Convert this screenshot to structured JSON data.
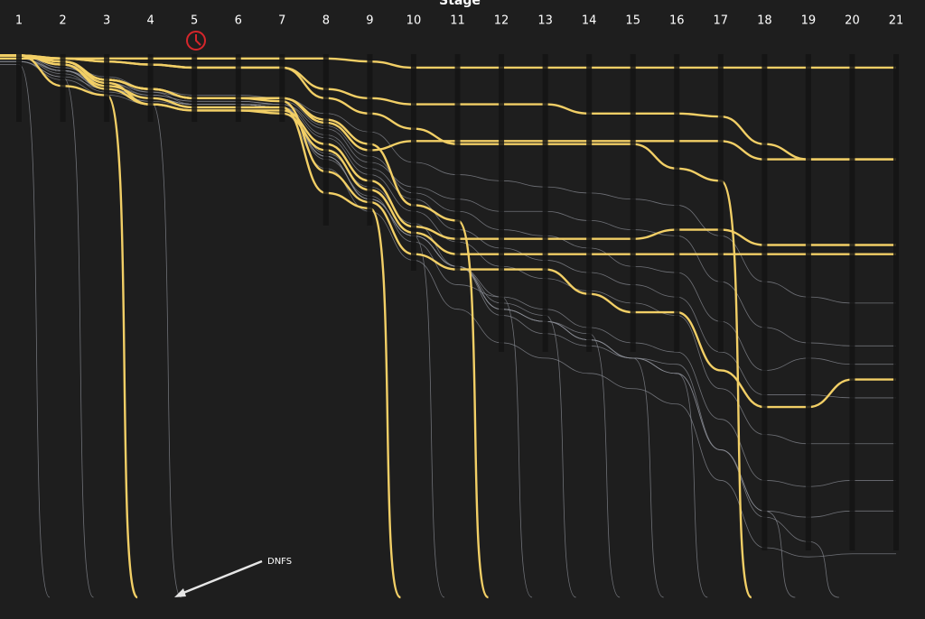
{
  "chart_data": {
    "type": "bump",
    "title": "Stage",
    "categories": [
      "1",
      "2",
      "3",
      "4",
      "5",
      "6",
      "7",
      "8",
      "9",
      "10",
      "11",
      "12",
      "13",
      "14",
      "15",
      "16",
      "17",
      "18",
      "19",
      "20",
      "21"
    ],
    "ylim": [
      0,
      180
    ],
    "annotation": "DNFS",
    "series": [
      {
        "color": "#f2cf66",
        "values": [
          2,
          2,
          2,
          2,
          2,
          2,
          2,
          2,
          3,
          5,
          5,
          5,
          5,
          5,
          5,
          5,
          5,
          5,
          5,
          5,
          5
        ]
      },
      {
        "color": "#f2cf66",
        "values": [
          1,
          3,
          9,
          12,
          15,
          15,
          15,
          23,
          32,
          29,
          29,
          29,
          29,
          29,
          29,
          29,
          29,
          35,
          35,
          35,
          35
        ]
      },
      {
        "color": "#f2cf66",
        "values": [
          1,
          3,
          10,
          17,
          19,
          19,
          19,
          30,
          42,
          57,
          61,
          61,
          61,
          61,
          61,
          58,
          58,
          63,
          63,
          63,
          63
        ]
      },
      {
        "color": "#f2cf66",
        "values": [
          1,
          4,
          12,
          17,
          19,
          19,
          20,
          32,
          45,
          59,
          66,
          66,
          66,
          66,
          66,
          66,
          66,
          66,
          66,
          66,
          66
        ]
      },
      {
        "color": "#f2cf66",
        "values": [
          1,
          2,
          3,
          4,
          5,
          5,
          5,
          12,
          15,
          17,
          17,
          17,
          17,
          20,
          20,
          20,
          21,
          30,
          35,
          35,
          35
        ]
      },
      {
        "color": "#f2cf66",
        "values": [
          1,
          3,
          9,
          12,
          15,
          15,
          16,
          39,
          49,
          66,
          71,
          71,
          71,
          79,
          85,
          85,
          104,
          116,
          116,
          107,
          107
        ]
      },
      {
        "color": "#f2cf66",
        "values": [
          1,
          11,
          14,
          null,
          null,
          null,
          null,
          null,
          null,
          null,
          null,
          null,
          null,
          null,
          null,
          null,
          null,
          null,
          null,
          null,
          null
        ]
      },
      {
        "color": "#f2cf66",
        "values": [
          1,
          4,
          11,
          15,
          18,
          18,
          18,
          46,
          51,
          null,
          null,
          null,
          null,
          null,
          null,
          null,
          null,
          null,
          null,
          null,
          null
        ]
      },
      {
        "color": "#f2cf66",
        "values": [
          1,
          3,
          9,
          12,
          15,
          15,
          15,
          22,
          30,
          50,
          55,
          null,
          null,
          null,
          null,
          null,
          null,
          null,
          null,
          null,
          null
        ]
      },
      {
        "color": "#f2cf66",
        "values": [
          1,
          2,
          3,
          4,
          5,
          5,
          5,
          15,
          20,
          25,
          30,
          30,
          30,
          30,
          30,
          38,
          42,
          null,
          null,
          null,
          null
        ]
      },
      {
        "color": "#8b8e96",
        "values": [
          1,
          6,
          11,
          14,
          16,
          16,
          17,
          25,
          36,
          44,
          48,
          52,
          52,
          55,
          58,
          60,
          75,
          90,
          95,
          96,
          96
        ]
      },
      {
        "color": "#8b8e96",
        "values": [
          2,
          7,
          13,
          16,
          18,
          18,
          18,
          35,
          47,
          62,
          76,
          80,
          84,
          90,
          95,
          98,
          120,
          140,
          142,
          140,
          140
        ]
      },
      {
        "color": "#8b8e96",
        "values": [
          1,
          5,
          10,
          13,
          17,
          17,
          18,
          28,
          40,
          52,
          62,
          70,
          74,
          78,
          82,
          86,
          110,
          125,
          128,
          128,
          128
        ]
      },
      {
        "color": "#8b8e96",
        "values": [
          3,
          8,
          12,
          15,
          17,
          17,
          17,
          33,
          44,
          56,
          70,
          86,
          92,
          96,
          100,
          102,
          130,
          150,
          152,
          150,
          150
        ]
      },
      {
        "color": "#8b8e96",
        "values": [
          2,
          6,
          10,
          14,
          16,
          16,
          17,
          27,
          38,
          48,
          58,
          64,
          68,
          72,
          76,
          80,
          98,
          112,
          112,
          113,
          113
        ]
      },
      {
        "color": "#8b8e96",
        "values": [
          1,
          4,
          8,
          12,
          14,
          14,
          15,
          20,
          26,
          36,
          40,
          42,
          44,
          46,
          48,
          50,
          60,
          75,
          80,
          82,
          82
        ]
      },
      {
        "color": "#8b8e96",
        "values": [
          1,
          5,
          9,
          13,
          15,
          15,
          16,
          24,
          34,
          46,
          52,
          58,
          60,
          64,
          70,
          72,
          88,
          104,
          100,
          102,
          102
        ]
      },
      {
        "color": "#8b8e96",
        "values": [
          3,
          9,
          14,
          17,
          19,
          19,
          20,
          38,
          52,
          68,
          84,
          95,
          100,
          105,
          110,
          115,
          140,
          162,
          165,
          164,
          164
        ]
      },
      {
        "color": "#8b8e96",
        "values": [
          4,
          null,
          null,
          null,
          null,
          null,
          null,
          null,
          null,
          null,
          null,
          null,
          null,
          null,
          null,
          null,
          null,
          null,
          null,
          null,
          null
        ]
      },
      {
        "color": "#8b8e96",
        "values": [
          3,
          8,
          null,
          null,
          null,
          null,
          null,
          null,
          null,
          null,
          null,
          null,
          null,
          null,
          null,
          null,
          null,
          null,
          null,
          null,
          null
        ]
      },
      {
        "color": "#8b8e96",
        "values": [
          2,
          6,
          12,
          16,
          null,
          null,
          null,
          null,
          null,
          null,
          null,
          null,
          null,
          null,
          null,
          null,
          null,
          null,
          null,
          null,
          null
        ]
      },
      {
        "color": "#8b8e96",
        "values": [
          2,
          6,
          12,
          15,
          17,
          17,
          18,
          34,
          48,
          60,
          null,
          null,
          null,
          null,
          null,
          null,
          null,
          null,
          null,
          null,
          null
        ]
      },
      {
        "color": "#8b8e96",
        "values": [
          2,
          6,
          12,
          15,
          17,
          17,
          18,
          34,
          48,
          60,
          70,
          80,
          null,
          null,
          null,
          null,
          null,
          null,
          null,
          null,
          null
        ]
      },
      {
        "color": "#8b8e96",
        "values": [
          2,
          6,
          12,
          15,
          17,
          17,
          18,
          34,
          48,
          60,
          70,
          82,
          86,
          null,
          null,
          null,
          null,
          null,
          null,
          null,
          null
        ]
      },
      {
        "color": "#8b8e96",
        "values": [
          2,
          6,
          12,
          15,
          17,
          17,
          18,
          34,
          48,
          60,
          70,
          84,
          88,
          92,
          null,
          null,
          null,
          null,
          null,
          null,
          null
        ]
      },
      {
        "color": "#8b8e96",
        "values": [
          2,
          6,
          12,
          15,
          17,
          17,
          18,
          34,
          48,
          60,
          70,
          84,
          88,
          94,
          100,
          null,
          null,
          null,
          null,
          null,
          null
        ]
      },
      {
        "color": "#8b8e96",
        "values": [
          2,
          6,
          12,
          15,
          17,
          17,
          18,
          34,
          48,
          60,
          70,
          84,
          88,
          94,
          100,
          105,
          null,
          null,
          null,
          null,
          null
        ]
      },
      {
        "color": "#8b8e96",
        "values": [
          2,
          6,
          12,
          15,
          17,
          17,
          18,
          34,
          48,
          60,
          70,
          84,
          88,
          94,
          100,
          105,
          130,
          150,
          null,
          null,
          null
        ]
      },
      {
        "color": "#8b8e96",
        "values": [
          2,
          6,
          12,
          15,
          17,
          17,
          18,
          34,
          48,
          60,
          70,
          84,
          88,
          94,
          100,
          105,
          130,
          152,
          160,
          null,
          null
        ]
      }
    ]
  }
}
